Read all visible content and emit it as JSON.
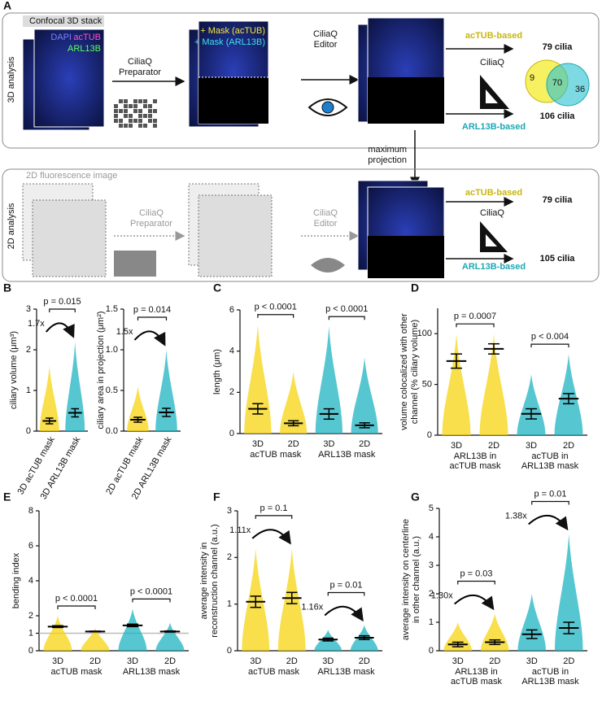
{
  "panel_a": {
    "letter": "A",
    "row_3d": {
      "label": "3D analysis",
      "stack_title": "Confocal 3D stack",
      "dapi": "DAPI",
      "actub": "acTUB",
      "arl13b": "ARL13B",
      "preparator": [
        "CiliaQ",
        "Preparator"
      ],
      "mask_actub": "+ Mask (acTUB)",
      "mask_arl13b": "+ Mask (ARL13B)",
      "editor": [
        "CiliaQ",
        "Editor"
      ],
      "actub_based": "acTUB-based",
      "ciliaq": "CiliaQ",
      "actub_count": "79 cilia",
      "arl13b_based": "ARL13B-based",
      "arl13b_count": "106 cilia",
      "venn": {
        "actub_only": "9",
        "overlap": "70",
        "arl13b_only": "36"
      }
    },
    "projection": [
      "maximum",
      "projection"
    ],
    "row_2d": {
      "label": "2D analysis",
      "stack_title": "2D fluorescence image",
      "preparator": [
        "CiliaQ",
        "Preparator"
      ],
      "editor": [
        "CiliaQ",
        "Editor"
      ],
      "actub_based": "acTUB-based",
      "ciliaq": "CiliaQ",
      "actub_count": "79 cilia",
      "arl13b_based": "ARL13B-based",
      "arl13b_count": "105 cilia"
    }
  },
  "chart_data": [
    {
      "type": "strip",
      "panel_letter": "B",
      "ylabel": [
        "ciliary volume (μm³)"
      ],
      "categories": [
        "3D acTUB mask",
        "3D ARL13B mask"
      ],
      "colors": [
        "#f5d40f",
        "#1db3c1"
      ],
      "values": [
        0.25,
        0.45
      ],
      "errors": [
        0.07,
        0.1
      ],
      "maxima": [
        1.6,
        2.2
      ],
      "ylim": [
        0,
        3
      ],
      "yticks": [
        0,
        1,
        2,
        3
      ],
      "p_values": [
        "p = 0.015"
      ],
      "fold_changes": [
        "1.7x"
      ]
    },
    {
      "type": "strip",
      "ylabel": [
        "ciliary area in projection (μm²)"
      ],
      "categories": [
        "2D acTUB mask",
        "2D ARL13B mask"
      ],
      "colors": [
        "#f5d40f",
        "#1db3c1"
      ],
      "values": [
        0.14,
        0.23
      ],
      "errors": [
        0.03,
        0.05
      ],
      "maxima": [
        0.55,
        1.0
      ],
      "ylim": [
        0,
        1.5
      ],
      "yticks": [
        {
          "value": 0,
          "label": "0.0"
        },
        0.5,
        {
          "value": 1,
          "label": "1.0"
        },
        1.5
      ],
      "p_values": [
        "p = 0.014"
      ],
      "fold_changes": [
        "1.5x"
      ]
    },
    {
      "type": "strip",
      "panel_letter": "C",
      "ylabel": [
        "length (μm)"
      ],
      "categories": [
        "3D",
        "2D",
        "3D",
        "2D"
      ],
      "group_labels": [
        [
          "acTUB mask"
        ],
        [
          "ARL13B mask"
        ]
      ],
      "colors": [
        "#f5d40f",
        "#f5d40f",
        "#1db3c1",
        "#1db3c1"
      ],
      "values": [
        1.2,
        0.5,
        0.95,
        0.4
      ],
      "errors": [
        0.25,
        0.12,
        0.25,
        0.12
      ],
      "maxima": [
        5.3,
        3.0,
        5.2,
        3.7
      ],
      "ylim": [
        0,
        6
      ],
      "yticks": [
        0,
        2,
        4,
        6
      ],
      "p_values": [
        "p < 0.0001",
        "p < 0.0001"
      ]
    },
    {
      "type": "strip",
      "panel_letter": "D",
      "ylabel": [
        "volume colocalized with other",
        "channel (% ciliary volume)"
      ],
      "categories": [
        "3D",
        "2D",
        "3D",
        "2D"
      ],
      "group_labels": [
        [
          "ARL13B in",
          "acTUB mask"
        ],
        [
          "acTUB in",
          "ARL13B mask"
        ]
      ],
      "colors": [
        "#f5d40f",
        "#f5d40f",
        "#1db3c1",
        "#1db3c1"
      ],
      "values": [
        73,
        85,
        21,
        36
      ],
      "errors": [
        7,
        5,
        5,
        5
      ],
      "maxima": [
        100,
        100,
        60,
        80
      ],
      "ylim": [
        0,
        125
      ],
      "yticks": [
        0,
        50,
        100
      ],
      "p_values": [
        "p = 0.0007",
        "p < 0.004"
      ]
    },
    {
      "type": "strip",
      "panel_letter": "E",
      "ylabel": [
        "bending index"
      ],
      "categories": [
        "3D",
        "2D",
        "3D",
        "2D"
      ],
      "group_labels": [
        [
          "acTUB mask"
        ],
        [
          "ARL13B mask"
        ]
      ],
      "colors": [
        "#f5d40f",
        "#f5d40f",
        "#1db3c1",
        "#1db3c1"
      ],
      "values": [
        1.38,
        1.1,
        1.45,
        1.1
      ],
      "errors": [
        0.05,
        0.02,
        0.07,
        0.03
      ],
      "maxima": [
        2.0,
        1.3,
        2.4,
        1.6
      ],
      "ylim": [
        0,
        8
      ],
      "yticks": [
        0,
        1,
        2,
        4,
        6,
        8
      ],
      "reference_line": 1,
      "p_values": [
        "p < 0.0001",
        "p < 0.0001"
      ]
    },
    {
      "type": "strip",
      "panel_letter": "F",
      "ylabel": [
        "average intensity in",
        "reconstruction channel (a.u.)"
      ],
      "categories": [
        "3D",
        "2D",
        "3D",
        "2D"
      ],
      "group_labels": [
        [
          "acTUB mask"
        ],
        [
          "ARL13B mask"
        ]
      ],
      "colors": [
        "#f5d40f",
        "#f5d40f",
        "#1db3c1",
        "#1db3c1"
      ],
      "values": [
        1.05,
        1.13,
        0.24,
        0.28
      ],
      "errors": [
        0.12,
        0.12,
        0.03,
        0.04
      ],
      "maxima": [
        2.2,
        2.2,
        0.45,
        0.55
      ],
      "ylim": [
        0,
        3
      ],
      "yticks": [
        0,
        1,
        2,
        3
      ],
      "p_values": [
        "p = 0.1",
        "p = 0.01"
      ],
      "fold_changes": [
        "1.11x",
        "1.16x"
      ]
    },
    {
      "type": "strip",
      "panel_letter": "G",
      "ylabel": [
        "average intensity on centerline",
        "in other channel (a.u.)"
      ],
      "categories": [
        "3D",
        "2D",
        "3D",
        "2D"
      ],
      "group_labels": [
        [
          "ARL13B in",
          "acTUB mask"
        ],
        [
          "acTUB in",
          "ARL13B mask"
        ]
      ],
      "colors": [
        "#f5d40f",
        "#f5d40f",
        "#1db3c1",
        "#1db3c1"
      ],
      "values": [
        0.22,
        0.3,
        0.58,
        0.8
      ],
      "errors": [
        0.08,
        0.08,
        0.15,
        0.2
      ],
      "maxima": [
        1.0,
        1.3,
        2.0,
        4.1
      ],
      "ylim": [
        0,
        5
      ],
      "yticks": [
        0,
        1,
        2,
        3,
        4,
        5
      ],
      "p_values": [
        "p = 0.03",
        "p = 0.01"
      ],
      "fold_changes": [
        "1.30x",
        "1.38x"
      ]
    }
  ]
}
